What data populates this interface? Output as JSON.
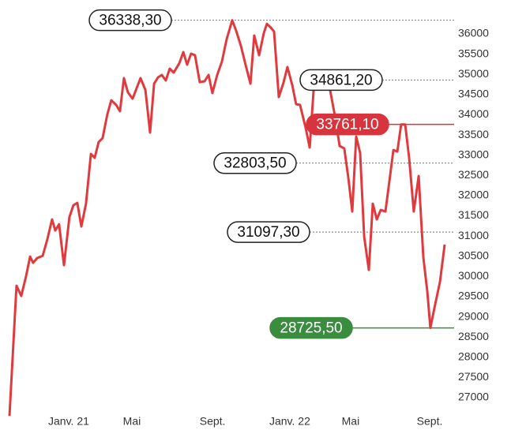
{
  "chart_data": {
    "type": "line",
    "x": [
      -3.28,
      -2.89,
      -2.63,
      -2.36,
      -2.14,
      -1.97,
      -1.75,
      -1.44,
      -1.18,
      -0.92,
      -0.74,
      -0.53,
      -0.26,
      0.04,
      0.26,
      0.48,
      0.7,
      0.96,
      1.23,
      1.44,
      1.66,
      1.88,
      2.14,
      2.36,
      2.63,
      2.84,
      3.06,
      3.28,
      3.54,
      3.76,
      3.98,
      4.25,
      4.51,
      4.73,
      4.95,
      5.16,
      5.38,
      5.6,
      5.82,
      6.13,
      6.35,
      6.56,
      6.78,
      7.0,
      7.26,
      7.53,
      7.75,
      7.96,
      8.23,
      8.49,
      8.75,
      9.06,
      9.28,
      9.54,
      9.8,
      10.07,
      10.28,
      10.55,
      10.81,
      10.98,
      11.2,
      11.38,
      11.64,
      11.9,
      12.12,
      12.39,
      12.6,
      12.82,
      13.13,
      13.35,
      13.61,
      13.83,
      14.05,
      14.27,
      14.49,
      14.75,
      15.01,
      15.27,
      15.49,
      15.71,
      15.93,
      16.15,
      16.37,
      16.63,
      16.85,
      17.07,
      17.29,
      17.55,
      17.77,
      17.99,
      18.21,
      18.42,
      18.64,
      18.86,
      19.12,
      19.39,
      19.65,
      19.87,
      20.04,
      20.31,
      20.57,
      20.83
    ],
    "series": [
      {
        "color": "#e03a3e",
        "values": [
          26547,
          29770,
          29516,
          30004,
          30492,
          30336,
          30453,
          30512,
          30922,
          31410,
          31137,
          31293,
          30277,
          31469,
          31762,
          31820,
          31234,
          31801,
          33031,
          32934,
          33324,
          33422,
          34008,
          34359,
          34242,
          34086,
          34906,
          34555,
          34398,
          34652,
          34906,
          34613,
          33559,
          34769,
          34926,
          34984,
          34848,
          35141,
          35043,
          35277,
          35551,
          35238,
          35512,
          35473,
          34808,
          34828,
          34984,
          34535,
          34984,
          35316,
          35863,
          36338.3,
          36078,
          35707,
          35238,
          34769,
          35961,
          35473,
          36020,
          36250,
          36156,
          36059,
          34438,
          34789,
          35180,
          34730,
          34262,
          34242,
          33676,
          33188,
          34867,
          34965,
          35004,
          34926,
          34594,
          33969,
          33227,
          33168,
          32445,
          31606,
          33461,
          33051,
          30980,
          30160,
          31801,
          31410,
          31645,
          31606,
          32367,
          33129,
          33090,
          33761.1,
          33761.1,
          32934,
          31606,
          32484,
          30473,
          29614,
          28725.5,
          29320,
          29867,
          30785
        ]
      }
    ],
    "xlim": [
      -3.28,
      20.83
    ],
    "xticks": [
      {
        "value": 0,
        "label": "Janv. 21"
      },
      {
        "value": 3.5,
        "label": "Mai"
      },
      {
        "value": 7.97,
        "label": "Sept."
      },
      {
        "value": 12.25,
        "label": "Janv. 22"
      },
      {
        "value": 15.62,
        "label": "Mai"
      },
      {
        "value": 20.0,
        "label": "Sept."
      }
    ],
    "ylim": [
      26547,
      36338.3
    ],
    "yticks": [
      27000,
      27500,
      28000,
      28500,
      29000,
      29500,
      30000,
      30500,
      31000,
      31500,
      32000,
      32500,
      33000,
      33500,
      34000,
      34500,
      35000,
      35500,
      36000
    ],
    "annotations": [
      {
        "value": 36338.3,
        "label": "36338,30",
        "color": "#ffffff"
      },
      {
        "value": 34861.2,
        "label": "34861,20",
        "color": "#ffffff"
      },
      {
        "value": 33761.1,
        "label": "33761,10",
        "color": "#d8343d"
      },
      {
        "value": 32803.5,
        "label": "32803,50",
        "color": "#ffffff"
      },
      {
        "value": 31097.3,
        "label": "31097,30",
        "color": "#ffffff"
      },
      {
        "value": 28725.5,
        "label": "28725,50",
        "color": "#3a8c3f"
      }
    ]
  }
}
